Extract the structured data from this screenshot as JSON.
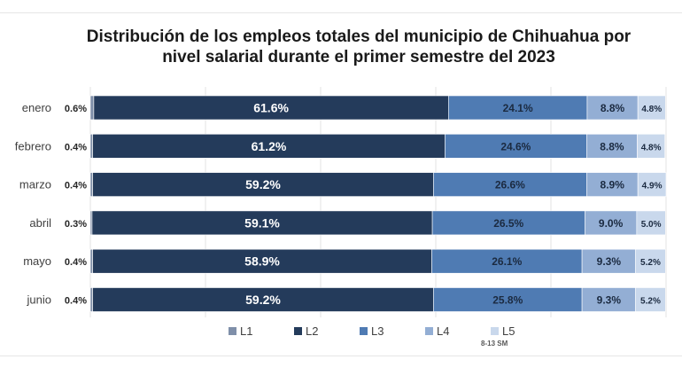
{
  "chart_data": {
    "type": "bar",
    "orientation": "horizontal",
    "stacked": true,
    "title_line1": "Distribución de los empleos totales del municipio de Chihuahua por",
    "title_line2": "nivel salarial durante el primer semestre del 2023",
    "categories": [
      "enero",
      "febrero",
      "marzo",
      "abril",
      "mayo",
      "junio"
    ],
    "series": [
      {
        "name": "L1",
        "color": "#7f8fa9",
        "values": [
          0.6,
          0.4,
          0.4,
          0.3,
          0.4,
          0.4
        ],
        "labels": [
          "0.6%",
          "0.4%",
          "0.4%",
          "0.3%",
          "0.4%",
          "0.4%"
        ]
      },
      {
        "name": "L2",
        "color": "#243b5b",
        "values": [
          61.6,
          61.2,
          59.2,
          59.1,
          58.9,
          59.2
        ],
        "labels": [
          "61.6%",
          "61.2%",
          "59.2%",
          "59.1%",
          "58.9%",
          "59.2%"
        ]
      },
      {
        "name": "L3",
        "color": "#4f7bb3",
        "values": [
          24.1,
          24.6,
          26.6,
          26.5,
          26.1,
          25.8
        ],
        "labels": [
          "24.1%",
          "24.6%",
          "26.6%",
          "26.5%",
          "26.1%",
          "25.8%"
        ]
      },
      {
        "name": "L4",
        "color": "#93aed4",
        "values": [
          8.8,
          8.8,
          8.9,
          9.0,
          9.3,
          9.3
        ],
        "labels": [
          "8.8%",
          "8.8%",
          "8.9%",
          "9.0%",
          "9.3%",
          "9.3%"
        ]
      },
      {
        "name": "L5",
        "color": "#c9d8ec",
        "values": [
          4.8,
          4.8,
          4.9,
          5.0,
          5.2,
          5.2
        ],
        "labels": [
          "4.8%",
          "4.8%",
          "4.9%",
          "5.0%",
          "5.2%",
          "5.2%"
        ]
      }
    ],
    "xlim": [
      0,
      100
    ],
    "grid": true,
    "legend_position": "bottom",
    "legend_note": "8-13 SM"
  }
}
